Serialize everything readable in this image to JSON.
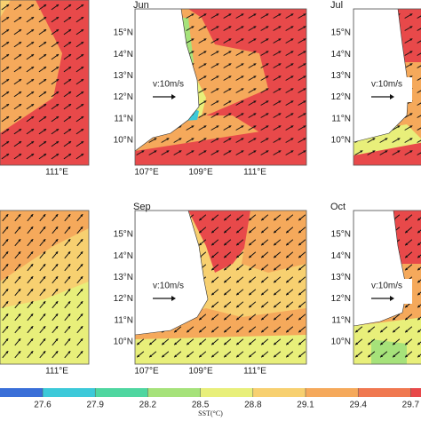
{
  "panels": [
    {
      "lon_labels": [
        "111°E"
      ]
    },
    {
      "title": "Jun",
      "lat_labels": [
        "15°N",
        "14°N",
        "13°N",
        "12°N",
        "11°N",
        "10°N"
      ],
      "lon_labels": [
        "107°E",
        "109°E",
        "111°E"
      ],
      "vector_label": "v:10m/s"
    },
    {
      "title": "Jul",
      "lat_labels": [
        "15°N",
        "14°N",
        "13°N",
        "12°N",
        "11°N",
        "10°N"
      ],
      "vector_label": "v:10m/s"
    },
    {
      "lon_labels": [
        "111°E"
      ]
    },
    {
      "title": "Sep",
      "lat_labels": [
        "15°N",
        "14°N",
        "13°N",
        "12°N",
        "11°N",
        "10°N"
      ],
      "lon_labels": [
        "107°E",
        "109°E",
        "111°E"
      ],
      "vector_label": "v:10m/s"
    },
    {
      "title": "Oct",
      "lat_labels": [
        "15°N",
        "14°N",
        "13°N",
        "12°N",
        "11°N",
        "10°N"
      ],
      "vector_label": "v:10m/s"
    }
  ],
  "colorbar": {
    "ticks": [
      27.6,
      27.9,
      28.2,
      28.5,
      28.8,
      29.1,
      29.4,
      29.7
    ],
    "label": "SST(°C)"
  }
}
